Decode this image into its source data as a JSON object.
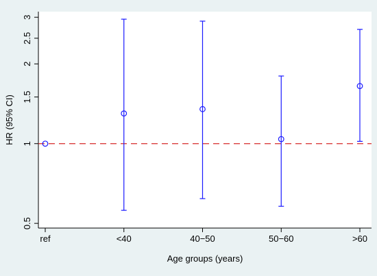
{
  "chart_data": {
    "type": "scatter",
    "subtype": "point-estimate-with-error-bars",
    "categories": [
      "ref",
      "<40",
      "40−50",
      "50−60",
      ">60"
    ],
    "series": [
      {
        "estimate": [
          1.0,
          1.3,
          1.35,
          1.04,
          1.65
        ],
        "lower": [
          null,
          0.56,
          0.62,
          0.58,
          1.02
        ],
        "upper": [
          null,
          2.95,
          2.9,
          1.8,
          2.7
        ]
      }
    ],
    "xlabel": "Age groups (years)",
    "ylabel": "HR (95% CI)",
    "y_scale": "log",
    "ylim": [
      0.48,
      3.15
    ],
    "y_ticks": [
      0.5,
      1,
      1.5,
      2,
      2.5,
      3
    ],
    "y_tick_labels": [
      "0.5",
      "1",
      "1.5",
      "2",
      "2.5",
      "3"
    ],
    "reference_line": {
      "y": 1,
      "style": "dashed",
      "color": "#d62728"
    },
    "colors": {
      "series": "#1a1aff",
      "plot_background": "#ffffff",
      "outer_background": "#eaf2f3"
    },
    "grid": false,
    "legend": "none"
  }
}
